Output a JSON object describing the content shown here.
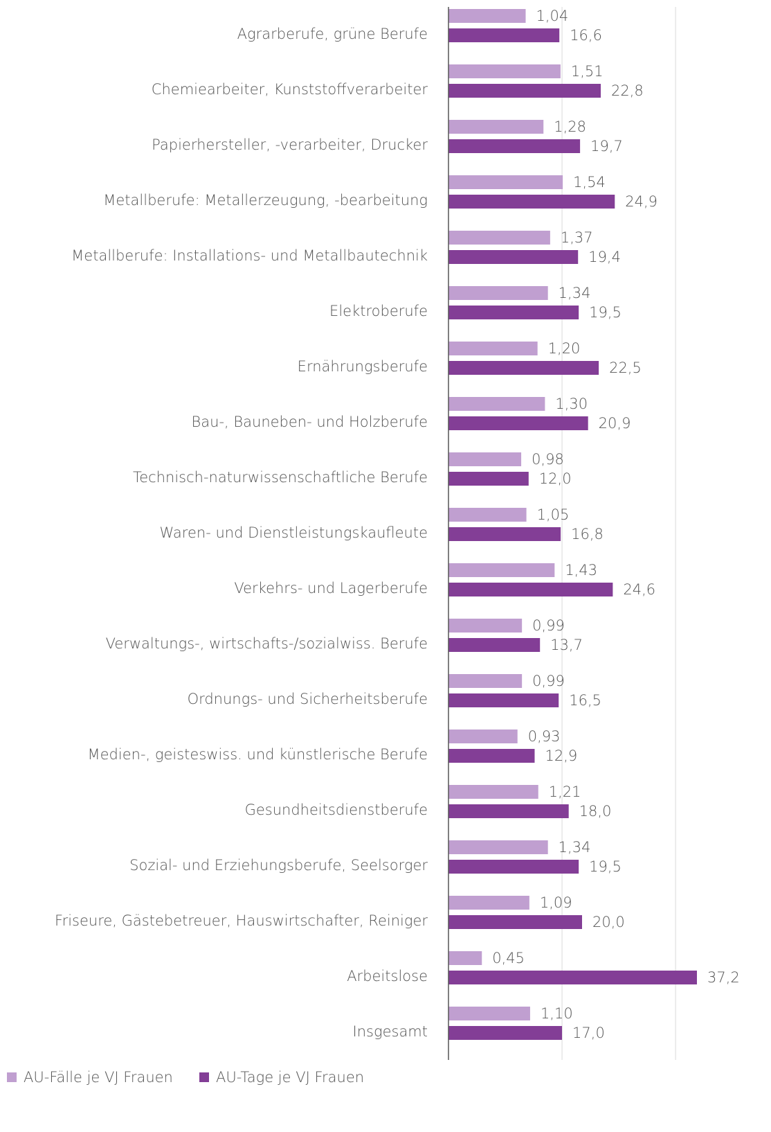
{
  "chart_data": {
    "type": "hbar",
    "categories": [
      "Agrarberufe, grüne Berufe",
      "Chemiearbeiter, Kunststoffverarbeiter",
      "Papierhersteller, -verarbeiter, Drucker",
      "Metallberufe: Metallerzeugung, -bearbeitung",
      "Metallberufe: Installations- und Metallbautechnik",
      "Elektroberufe",
      "Ernährungsberufe",
      "Bau-, Bauneben- und Holzberufe",
      "Technisch-naturwissenschaftliche Berufe",
      "Waren- und Dienstleistungskaufleute",
      "Verkehrs- und Lagerberufe",
      "Verwaltungs-, wirtschafts-/sozialwiss. Berufe",
      "Ordnungs- und Sicherheitsberufe",
      "Medien-, geisteswiss. und künstlerische Berufe",
      "Gesundheitsdienstberufe",
      "Sozial- und Erziehungsberufe, Seelsorger",
      "Friseure, Gästebetreuer, Hauswirtschafter, Reiniger",
      "Arbeitslose",
      "Insgesamt"
    ],
    "series": [
      {
        "name": "AU-Fälle je VJ Frauen",
        "color": "#c09fd0",
        "axis": "x2",
        "values": [
          1.04,
          1.51,
          1.28,
          1.54,
          1.37,
          1.34,
          1.2,
          1.3,
          0.98,
          1.05,
          1.43,
          0.99,
          0.99,
          0.93,
          1.21,
          1.34,
          1.09,
          0.45,
          1.1
        ],
        "value_labels": [
          "1,04",
          "1,51",
          "1,28",
          "1,54",
          "1,37",
          "1,34",
          "1,20",
          "1,30",
          "0,98",
          "1,05",
          "1,43",
          "0,99",
          "0,99",
          "0,93",
          "1,21",
          "1,34",
          "1,09",
          "0,45",
          "1,10"
        ]
      },
      {
        "name": "AU-Tage je VJ Frauen",
        "color": "#833e96",
        "values": [
          16.6,
          22.8,
          19.7,
          24.9,
          19.4,
          19.5,
          22.5,
          20.9,
          12.0,
          16.8,
          24.6,
          13.7,
          16.5,
          12.9,
          18.0,
          19.5,
          20.0,
          37.2,
          17.0
        ],
        "value_labels": [
          "16,6",
          "22,8",
          "19,7",
          "24,9",
          "19,4",
          "19,5",
          "22,5",
          "20,9",
          "12,0",
          "16,8",
          "24,6",
          "13,7",
          "16,5",
          "12,9",
          "18,0",
          "19,5",
          "20,0",
          "37,2",
          "17,0"
        ]
      }
    ],
    "xlim": [
      0,
      40
    ],
    "x2lim": [
      0,
      3.6
    ],
    "xticks": [
      17,
      34
    ],
    "grid": true,
    "legend": "bottom-left"
  }
}
